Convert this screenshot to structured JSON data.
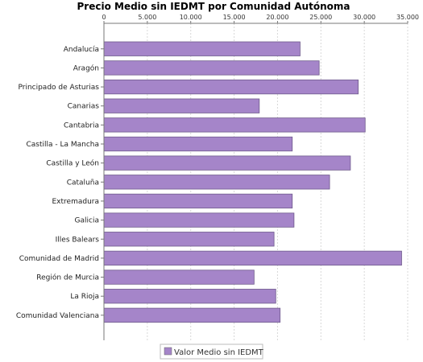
{
  "chart_data": {
    "type": "bar",
    "orientation": "horizontal",
    "title": "Precio Medio sin IEDMT por Comunidad Autónoma",
    "xlabel": "",
    "ylabel": "",
    "xlim": [
      0,
      35000
    ],
    "x_ticks": [
      0,
      5000,
      10000,
      15000,
      20000,
      25000,
      30000,
      35000
    ],
    "x_tick_labels": [
      "0",
      "5.000",
      "10.000",
      "15.000",
      "20.000",
      "25.000",
      "30.000",
      "35.000"
    ],
    "x_axis_position": "top",
    "grid": true,
    "categories": [
      "Andalucía",
      "Aragón",
      "Principado de Asturias",
      "Canarias",
      "Cantabria",
      "Castilla - La Mancha",
      "Castilla y León",
      "Cataluña",
      "Extremadura",
      "Galicia",
      "Illes Balears",
      "Comunidad de Madrid",
      "Región de Murcia",
      "La Rioja",
      "Comunidad Valenciana"
    ],
    "series": [
      {
        "name": "Valor Medio sin IEDMT",
        "color": "#a585c9",
        "values": [
          22600,
          24800,
          29300,
          17900,
          30100,
          21700,
          28400,
          26000,
          21700,
          21900,
          19600,
          34300,
          17300,
          19800,
          20300
        ]
      }
    ],
    "legend_position": "bottom"
  }
}
